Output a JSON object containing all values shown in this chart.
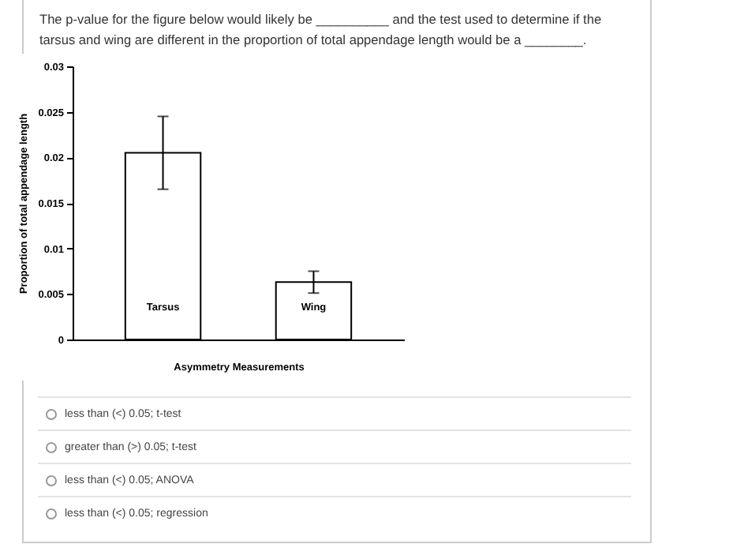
{
  "chart_data": {
    "type": "bar",
    "title": "The p-value for the figure below would likely be __________ and the test used to determine if the tarsus and wing are different in the proportion of total appendage length would be a ________.",
    "categories": [
      "Tarsus",
      "Wing"
    ],
    "values": [
      0.0205,
      0.0063
    ],
    "errors": [
      0.004,
      0.0012
    ],
    "color": "#ffffff",
    "xlabel": "Asymmetry Measurements",
    "ylabel": "Proportion of total appendage length",
    "ylim": [
      0,
      0.03
    ],
    "yticks": [
      0,
      0.005,
      0.01,
      0.015,
      0.02,
      0.025,
      0.03
    ],
    "annotations": [
      "less than (<) 0.05; t-test",
      "greater than (>) 0.05; t-test",
      "less than (<) 0.05; ANOVA",
      "less than (<) 0.05; regression"
    ]
  }
}
